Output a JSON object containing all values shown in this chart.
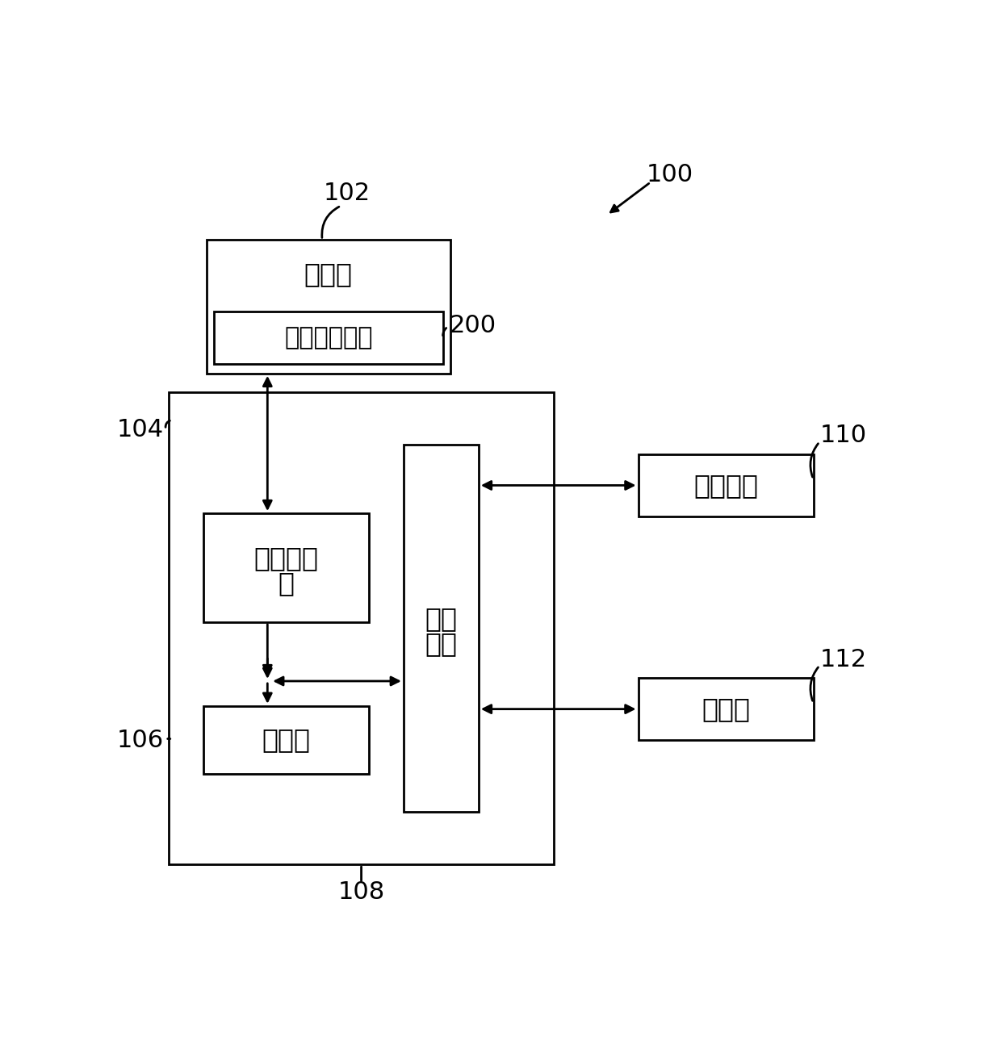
{
  "bg_color": "#ffffff",
  "line_color": "#000000",
  "label_100": "100",
  "label_102": "102",
  "label_104": "104",
  "label_106": "106",
  "label_108": "108",
  "label_110": "110",
  "label_112": "112",
  "label_200": "200",
  "text_memory": "存储器",
  "text_route": "路线规划装置",
  "text_mem_ctrl_1": "存储控制",
  "text_mem_ctrl_2": "器",
  "text_processor": "处理器",
  "text_peripheral_1": "外设",
  "text_peripheral_2": "接口",
  "text_locator": "定位模块",
  "text_sensor": "传感器",
  "figsize": [
    12.4,
    13.16
  ],
  "dpi": 100
}
